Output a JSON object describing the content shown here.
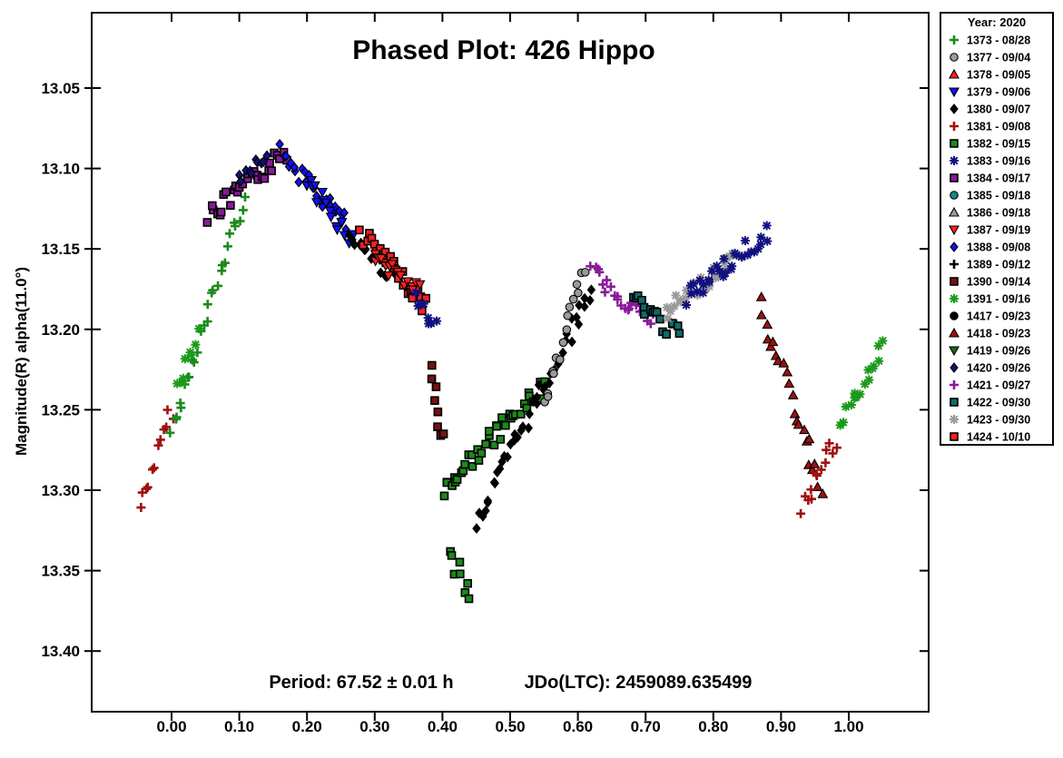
{
  "chart_data": {
    "type": "scatter",
    "title": "Phased Plot: 426 Hippo",
    "ylabel": "Magnitude(R) alpha(11.0°)",
    "xlabel": "",
    "xlim": [
      -0.12,
      1.12
    ],
    "ylim": [
      13.0,
      13.45
    ],
    "y_inverted": true,
    "grid": false,
    "x_ticks": [
      "0.00",
      "0.10",
      "0.20",
      "0.30",
      "0.40",
      "0.50",
      "0.60",
      "0.70",
      "0.80",
      "0.90",
      "1.00"
    ],
    "y_ticks": [
      "13.05",
      "13.10",
      "13.15",
      "13.20",
      "13.25",
      "13.30",
      "13.35",
      "13.40"
    ],
    "footer": {
      "period": "Period: 67.52 ± 0.01 h",
      "epoch": "JDo(LTC): 2459089.635499"
    },
    "legend": {
      "title": "Year: 2020",
      "placement": "right-outside",
      "entries": [
        {
          "label": "1373 - 08/28",
          "marker": "plus",
          "color": "#1a8a1a"
        },
        {
          "label": "1377 - 09/04",
          "marker": "circle",
          "color": "#999999"
        },
        {
          "label": "1378 - 09/05",
          "marker": "triangle-up",
          "color": "#ff2020"
        },
        {
          "label": "1379 - 09/06",
          "marker": "triangle-down",
          "color": "#1010ff"
        },
        {
          "label": "1380 - 09/07",
          "marker": "diamond",
          "color": "#000000"
        },
        {
          "label": "1381 - 09/08",
          "marker": "plus",
          "color": "#a01010"
        },
        {
          "label": "1382 - 09/15",
          "marker": "square",
          "color": "#1a8a1a"
        },
        {
          "label": "1383 - 09/16",
          "marker": "asterisk",
          "color": "#101080"
        },
        {
          "label": "1384 - 09/17",
          "marker": "square",
          "color": "#8a1a9a"
        },
        {
          "label": "1385 - 09/18",
          "marker": "circle",
          "color": "#108a8a"
        },
        {
          "label": "1386 - 09/18",
          "marker": "triangle-up",
          "color": "#9a9a9a"
        },
        {
          "label": "1387 - 09/19",
          "marker": "triangle-down",
          "color": "#ff2020"
        },
        {
          "label": "1388 - 09/08",
          "marker": "diamond",
          "color": "#1010ff"
        },
        {
          "label": "1389 - 09/12",
          "marker": "plus",
          "color": "#000000"
        },
        {
          "label": "1390 - 09/14",
          "marker": "square",
          "color": "#7a1010"
        },
        {
          "label": "1391 - 09/16",
          "marker": "asterisk",
          "color": "#1a9a1a"
        },
        {
          "label": "1417 - 09/23",
          "marker": "circle",
          "color": "#000000"
        },
        {
          "label": "1418 - 09/23",
          "marker": "triangle-up",
          "color": "#a01010"
        },
        {
          "label": "1419 - 09/26",
          "marker": "triangle-down",
          "color": "#1a6a1a"
        },
        {
          "label": "1420 - 09/26",
          "marker": "diamond",
          "color": "#10107a"
        },
        {
          "label": "1421 - 09/27",
          "marker": "plus",
          "color": "#8a1a9a"
        },
        {
          "label": "1422 - 09/30",
          "marker": "square",
          "color": "#106a6a"
        },
        {
          "label": "1423 - 09/30",
          "marker": "asterisk",
          "color": "#9a9a9a"
        },
        {
          "label": "1424 - 10/10",
          "marker": "square",
          "color": "#ff2020"
        }
      ]
    },
    "segments": [
      {
        "series": "1381 - 09/08",
        "x0": -0.045,
        "x1": 0.0,
        "y0": 13.31,
        "y1": 13.25
      },
      {
        "series": "1373 - 08/28",
        "x0": 0.0,
        "x1": 0.115,
        "y0": 13.265,
        "y1": 13.105
      },
      {
        "series": "1391 - 09/16",
        "x0": 0.01,
        "x1": 0.04,
        "y0": 13.235,
        "y1": 13.2
      },
      {
        "series": "1384 - 09/17",
        "x0": 0.055,
        "x1": 0.17,
        "y0": 13.13,
        "y1": 13.09
      },
      {
        "series": "1420 - 09/26",
        "x0": 0.1,
        "x1": 0.14,
        "y0": 13.105,
        "y1": 13.088
      },
      {
        "series": "1388 - 09/08",
        "x0": 0.16,
        "x1": 0.26,
        "y0": 13.09,
        "y1": 13.135
      },
      {
        "series": "1379 - 09/06",
        "x0": 0.2,
        "x1": 0.27,
        "y0": 13.11,
        "y1": 13.145
      },
      {
        "series": "1380 - 09/07",
        "x0": 0.26,
        "x1": 0.33,
        "y0": 13.14,
        "y1": 13.168
      },
      {
        "series": "1424 - 10/10",
        "x0": 0.28,
        "x1": 0.375,
        "y0": 13.14,
        "y1": 13.185
      },
      {
        "series": "1387 - 09/19",
        "x0": 0.3,
        "x1": 0.365,
        "y0": 13.155,
        "y1": 13.175
      },
      {
        "series": "1383 - 09/16",
        "x0": 0.36,
        "x1": 0.39,
        "y0": 13.178,
        "y1": 13.2
      },
      {
        "series": "1390 - 09/14",
        "x0": 0.385,
        "x1": 0.4,
        "y0": 13.225,
        "y1": 13.27
      },
      {
        "series": "1382 - 09/15",
        "x0": 0.4,
        "x1": 0.55,
        "y0": 13.3,
        "y1": 13.235
      },
      {
        "series": "1382 - 09/15",
        "x0": 0.41,
        "x1": 0.44,
        "y0": 13.34,
        "y1": 13.365
      },
      {
        "series": "1380 - 09/07",
        "x0": 0.45,
        "x1": 0.62,
        "y0": 13.32,
        "y1": 13.175
      },
      {
        "series": "1377 - 09/04",
        "x0": 0.55,
        "x1": 0.61,
        "y0": 13.25,
        "y1": 13.16
      },
      {
        "series": "1421 - 09/27",
        "x0": 0.62,
        "x1": 0.71,
        "y0": 13.165,
        "y1": 13.195
      },
      {
        "series": "1422 - 09/30",
        "x0": 0.68,
        "x1": 0.75,
        "y0": 13.18,
        "y1": 13.205
      },
      {
        "series": "1423 - 09/30",
        "x0": 0.73,
        "x1": 0.83,
        "y0": 13.19,
        "y1": 13.155
      },
      {
        "series": "1383 - 09/16",
        "x0": 0.76,
        "x1": 0.88,
        "y0": 13.18,
        "y1": 13.14
      },
      {
        "series": "1418 - 09/23",
        "x0": 0.87,
        "x1": 0.96,
        "y0": 13.185,
        "y1": 13.3
      },
      {
        "series": "1381 - 09/08",
        "x0": 0.93,
        "x1": 0.98,
        "y0": 13.31,
        "y1": 13.27
      },
      {
        "series": "1391 - 09/16",
        "x0": 0.99,
        "x1": 1.05,
        "y0": 13.26,
        "y1": 13.21
      }
    ]
  }
}
